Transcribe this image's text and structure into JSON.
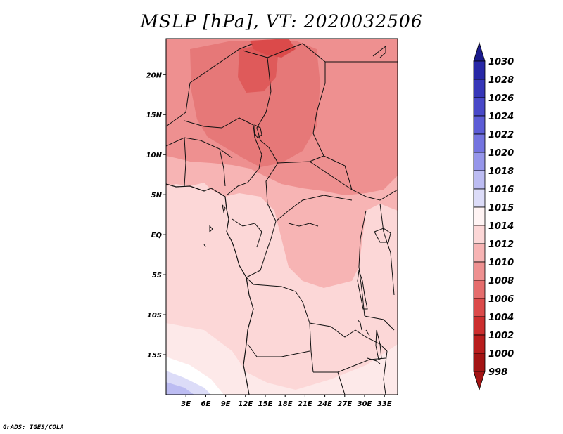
{
  "title": "MSLP [hPa], VT: 2020032506",
  "credit": "GrADS: IGES/COLA",
  "map": {
    "lon_labels": [
      "3E",
      "6E",
      "9E",
      "12E",
      "15E",
      "18E",
      "21E",
      "24E",
      "27E",
      "30E",
      "33E"
    ],
    "lat_labels": [
      "20N",
      "15N",
      "10N",
      "5N",
      "EQ",
      "5S",
      "10S",
      "15S"
    ]
  },
  "colorbar": {
    "levels": [
      {
        "label": "1030",
        "color": "#1a1a8c"
      },
      {
        "label": "1028",
        "color": "#2727a6"
      },
      {
        "label": "1026",
        "color": "#3636b8"
      },
      {
        "label": "1024",
        "color": "#4848c8"
      },
      {
        "label": "1022",
        "color": "#5c5cd6"
      },
      {
        "label": "1020",
        "color": "#7474e0"
      },
      {
        "label": "1018",
        "color": "#9696ea"
      },
      {
        "label": "1016",
        "color": "#bcbcf2"
      },
      {
        "label": "1015",
        "color": "#dcdcf8"
      },
      {
        "label": "1014",
        "color": "#fff4f4"
      },
      {
        "label": "1012",
        "color": "#fcd7d7"
      },
      {
        "label": "1010",
        "color": "#f7b4b4"
      },
      {
        "label": "1008",
        "color": "#ee9090"
      },
      {
        "label": "1006",
        "color": "#e56d6d"
      },
      {
        "label": "1004",
        "color": "#db4a4a"
      },
      {
        "label": "1002",
        "color": "#cc2e2e"
      },
      {
        "label": "1000",
        "color": "#b81d1d"
      },
      {
        "label": "998",
        "color": "#a31414"
      }
    ],
    "top_arrow_color": "#1a1a8c",
    "bottom_arrow_color": "#a31414"
  }
}
